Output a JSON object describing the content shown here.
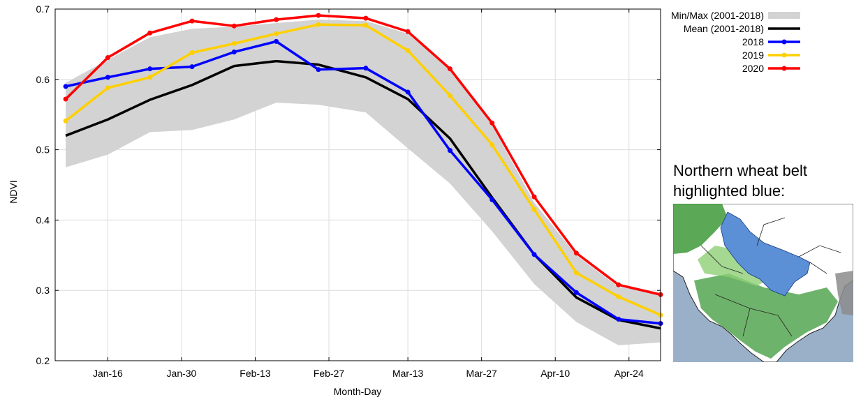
{
  "chart_data": {
    "type": "line",
    "title": "",
    "xlabel": "Month-Day",
    "ylabel": "NDVI",
    "ylim": [
      0.2,
      0.7
    ],
    "yticks": [
      0.2,
      0.3,
      0.4,
      0.5,
      0.6,
      0.7
    ],
    "xlim": [
      "Jan-06",
      "Apr-30"
    ],
    "xticks": [
      "Jan-16",
      "Jan-30",
      "Feb-13",
      "Feb-27",
      "Mar-13",
      "Mar-27",
      "Apr-10",
      "Apr-24"
    ],
    "grid": true,
    "legend_position": "top-right",
    "x": [
      "Jan-08",
      "Jan-16",
      "Jan-24",
      "Feb-01",
      "Feb-09",
      "Feb-17",
      "Feb-25",
      "Mar-05",
      "Mar-13",
      "Mar-21",
      "Mar-29",
      "Apr-06",
      "Apr-14",
      "Apr-22",
      "Apr-30"
    ],
    "band": {
      "name": "Min/Max (2001-2018)",
      "color": "#d3d3d3",
      "lower": [
        0.475,
        0.493,
        0.525,
        0.528,
        0.543,
        0.567,
        0.564,
        0.553,
        0.502,
        0.452,
        0.384,
        0.309,
        0.255,
        0.222,
        0.226
      ],
      "upper": [
        0.595,
        0.628,
        0.66,
        0.672,
        0.675,
        0.68,
        0.685,
        0.683,
        0.665,
        0.614,
        0.535,
        0.425,
        0.35,
        0.305,
        0.296
      ]
    },
    "series": [
      {
        "name": "Mean (2001-2018)",
        "color": "#000000",
        "markers": false,
        "values": [
          0.52,
          0.543,
          0.571,
          0.592,
          0.619,
          0.626,
          0.621,
          0.603,
          0.572,
          0.516,
          0.432,
          0.351,
          0.29,
          0.258,
          0.246
        ]
      },
      {
        "name": "2018",
        "color": "#0000ff",
        "markers": true,
        "values": [
          0.59,
          0.603,
          0.615,
          0.618,
          0.639,
          0.654,
          0.614,
          0.616,
          0.582,
          0.499,
          0.429,
          0.351,
          0.297,
          0.259,
          0.253
        ]
      },
      {
        "name": "2019",
        "color": "#ffd000",
        "markers": true,
        "values": [
          0.541,
          0.588,
          0.603,
          0.638,
          0.651,
          0.665,
          0.678,
          0.677,
          0.641,
          0.577,
          0.507,
          0.415,
          0.325,
          0.291,
          0.265
        ]
      },
      {
        "name": "2020",
        "color": "#ff0000",
        "markers": true,
        "values": [
          0.572,
          0.631,
          0.666,
          0.683,
          0.676,
          0.685,
          0.691,
          0.687,
          0.668,
          0.615,
          0.538,
          0.433,
          0.353,
          0.308,
          0.294
        ]
      }
    ]
  },
  "inset": {
    "caption_line1": "Northern wheat belt",
    "caption_line2": "highlighted blue:",
    "colors": {
      "water": "#9ab0c8",
      "land": "#ffffff",
      "vegetation": "#3e9a3a",
      "vegetation_light": "#8fcf77",
      "belt": "#5b8fd6",
      "hills": "#8c8c8c"
    }
  }
}
